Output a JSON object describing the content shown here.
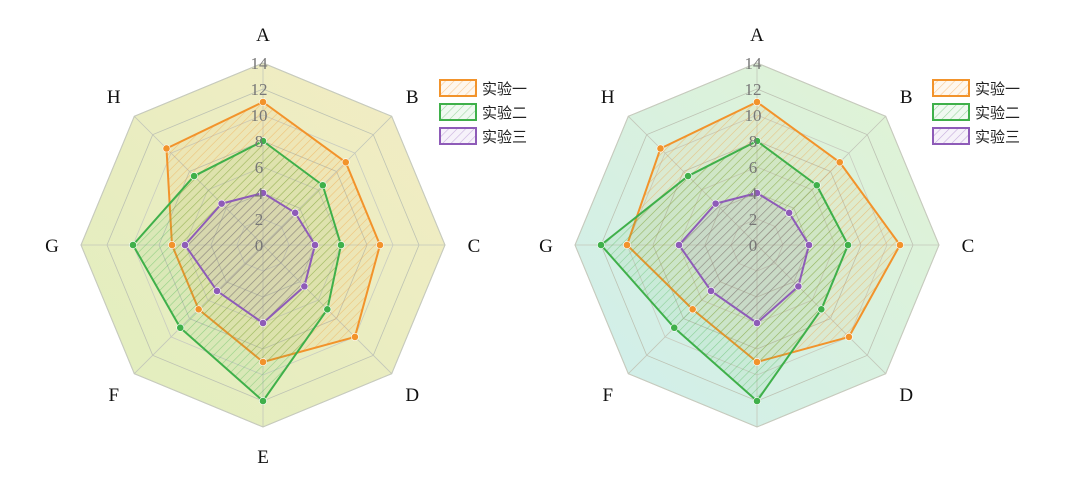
{
  "chart_data": [
    {
      "type": "radar",
      "axes": [
        "A",
        "B",
        "C",
        "D",
        "E",
        "F",
        "G",
        "H"
      ],
      "rlim": [
        0,
        14
      ],
      "ticks": [
        "0",
        "2",
        "4",
        "6",
        "8",
        "10",
        "12",
        "14"
      ],
      "grid": true,
      "legend_position": "top-right",
      "background_colors": [
        "#d6e8a8",
        "#f0e6b0"
      ],
      "series": [
        {
          "name": "实验一",
          "color": "#f2932b",
          "values": [
            11,
            9,
            9,
            10,
            9,
            7,
            7,
            10.5
          ]
        },
        {
          "name": "实验二",
          "color": "#3fb04a",
          "values": [
            8,
            6.5,
            6,
            7,
            12,
            9,
            10,
            7.5
          ]
        },
        {
          "name": "实验三",
          "color": "#8e5bb8",
          "values": [
            4,
            3.5,
            4,
            4.5,
            6,
            5,
            6,
            4.5
          ]
        }
      ]
    },
    {
      "type": "radar",
      "axes": [
        "A",
        "B",
        "C",
        "D",
        "",
        "F",
        "G",
        "H"
      ],
      "rlim": [
        0,
        14
      ],
      "ticks": [
        "0",
        "2",
        "4",
        "6",
        "8",
        "10",
        "12",
        "14"
      ],
      "grid": true,
      "legend_position": "top-right",
      "background_colors": [
        "#bfe8e6",
        "#d8f0c4"
      ],
      "series": [
        {
          "name": "实验一",
          "color": "#f2932b",
          "values": [
            11,
            9,
            11,
            10,
            9,
            7,
            10,
            10.5
          ]
        },
        {
          "name": "实验二",
          "color": "#3fb04a",
          "values": [
            8,
            6.5,
            7,
            7,
            12,
            9,
            12,
            7.5
          ]
        },
        {
          "name": "实验三",
          "color": "#8e5bb8",
          "values": [
            4,
            3.5,
            4,
            4.5,
            6,
            5,
            6,
            4.5
          ]
        }
      ]
    }
  ]
}
